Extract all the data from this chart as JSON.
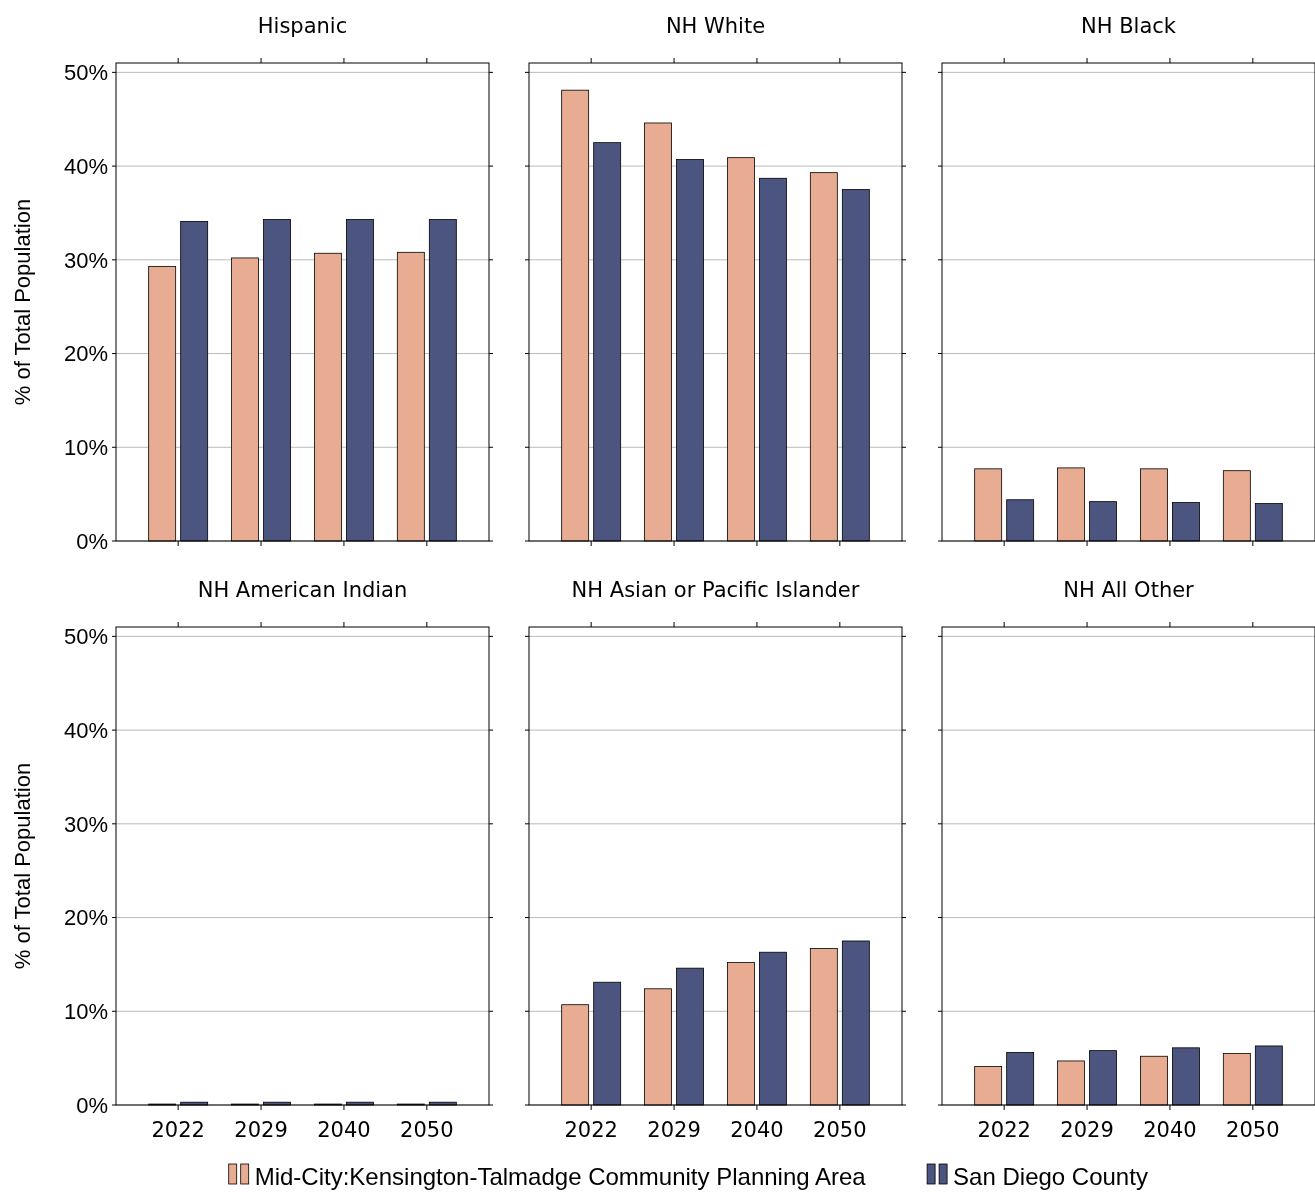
{
  "chart_data": [
    {
      "type": "bar",
      "title": "Hispanic",
      "ylabel": "% of Total Population",
      "categories": [
        "2022",
        "2029",
        "2040",
        "2050"
      ],
      "series": [
        {
          "name": "Mid-City:Kensington-Talmadge Community Planning Area",
          "color": "#e8ac92",
          "values": [
            29.3,
            30.2,
            30.7,
            30.8
          ]
        },
        {
          "name": "San Diego County",
          "color": "#4b5580",
          "values": [
            34.1,
            34.3,
            34.3,
            34.3
          ]
        }
      ],
      "ylim": [
        0,
        51
      ],
      "yticks": [
        {
          "value": 0,
          "label": "0%"
        },
        {
          "value": 10,
          "label": "10%"
        },
        {
          "value": 20,
          "label": "20%"
        },
        {
          "value": 30,
          "label": "30%"
        },
        {
          "value": 40,
          "label": "40%"
        },
        {
          "value": 50,
          "label": "50%"
        }
      ],
      "grid": "y",
      "tick_labels": "y",
      "legend": "bottom"
    },
    {
      "type": "bar",
      "title": "NH White",
      "categories": [
        "2022",
        "2029",
        "2040",
        "2050"
      ],
      "series": [
        {
          "color": "#e8ac92",
          "values": [
            48.1,
            44.6,
            40.9,
            39.3
          ]
        },
        {
          "color": "#4b5580",
          "values": [
            42.5,
            40.7,
            38.7,
            37.5
          ]
        }
      ],
      "ylim": [
        0,
        51
      ],
      "yticks": [
        {
          "value": 0,
          "label": null
        },
        {
          "value": 10,
          "label": null
        },
        {
          "value": 20,
          "label": null
        },
        {
          "value": 30,
          "label": null
        },
        {
          "value": 40,
          "label": null
        },
        {
          "value": 50,
          "label": null
        }
      ],
      "grid": "y",
      "tick_labels": false
    },
    {
      "type": "bar",
      "title": "NH Black",
      "categories": [
        "2022",
        "2029",
        "2040",
        "2050"
      ],
      "series": [
        {
          "color": "#e8ac92",
          "values": [
            7.7,
            7.8,
            7.7,
            7.5
          ]
        },
        {
          "color": "#4b5580",
          "values": [
            4.4,
            4.2,
            4.1,
            4.0
          ]
        }
      ],
      "ylim": [
        0,
        51
      ],
      "yticks": [
        {
          "value": 0,
          "label": null
        },
        {
          "value": 10,
          "label": null
        },
        {
          "value": 20,
          "label": null
        },
        {
          "value": 30,
          "label": null
        },
        {
          "value": 40,
          "label": null
        },
        {
          "value": 50,
          "label": null
        }
      ],
      "grid": "y",
      "tick_labels": false
    },
    {
      "type": "bar",
      "title": "NH American Indian",
      "ylabel": "% of Total Population",
      "categories": [
        "2022",
        "2029",
        "2040",
        "2050"
      ],
      "series": [
        {
          "color": "#e8ac92",
          "values": [
            0.1,
            0.1,
            0.1,
            0.1
          ]
        },
        {
          "color": "#4b5580",
          "values": [
            0.3,
            0.3,
            0.3,
            0.3
          ]
        }
      ],
      "ylim": [
        0,
        51
      ],
      "yticks": [
        {
          "value": 0,
          "label": "0%"
        },
        {
          "value": 10,
          "label": "10%"
        },
        {
          "value": 20,
          "label": "20%"
        },
        {
          "value": 30,
          "label": "30%"
        },
        {
          "value": 40,
          "label": "40%"
        },
        {
          "value": 50,
          "label": "50%"
        }
      ],
      "grid": "y"
    },
    {
      "type": "bar",
      "title": "NH Asian or Pacific Islander",
      "categories": [
        "2022",
        "2029",
        "2040",
        "2050"
      ],
      "series": [
        {
          "color": "#e8ac92",
          "values": [
            10.7,
            12.4,
            15.2,
            16.7
          ]
        },
        {
          "color": "#4b5580",
          "values": [
            13.1,
            14.6,
            16.3,
            17.5
          ]
        }
      ],
      "ylim": [
        0,
        51
      ],
      "yticks": [
        {
          "value": 0,
          "label": null
        },
        {
          "value": 10,
          "label": null
        },
        {
          "value": 20,
          "label": null
        },
        {
          "value": 30,
          "label": null
        },
        {
          "value": 40,
          "label": null
        },
        {
          "value": 50,
          "label": null
        }
      ],
      "grid": "y",
      "tick_labels": "x"
    },
    {
      "type": "bar",
      "title": "NH All Other",
      "categories": [
        "2022",
        "2029",
        "2040",
        "2050"
      ],
      "series": [
        {
          "color": "#e8ac92",
          "values": [
            4.1,
            4.7,
            5.2,
            5.5
          ]
        },
        {
          "color": "#4b5580",
          "values": [
            5.6,
            5.8,
            6.1,
            6.3
          ]
        }
      ],
      "ylim": [
        0,
        51
      ],
      "yticks": [
        {
          "value": 0,
          "label": null
        },
        {
          "value": 10,
          "label": null
        },
        {
          "value": 20,
          "label": null
        },
        {
          "value": 30,
          "label": null
        },
        {
          "value": 40,
          "label": null
        },
        {
          "value": 50,
          "label": null
        }
      ],
      "grid": "y",
      "tick_labels": "x"
    }
  ]
}
